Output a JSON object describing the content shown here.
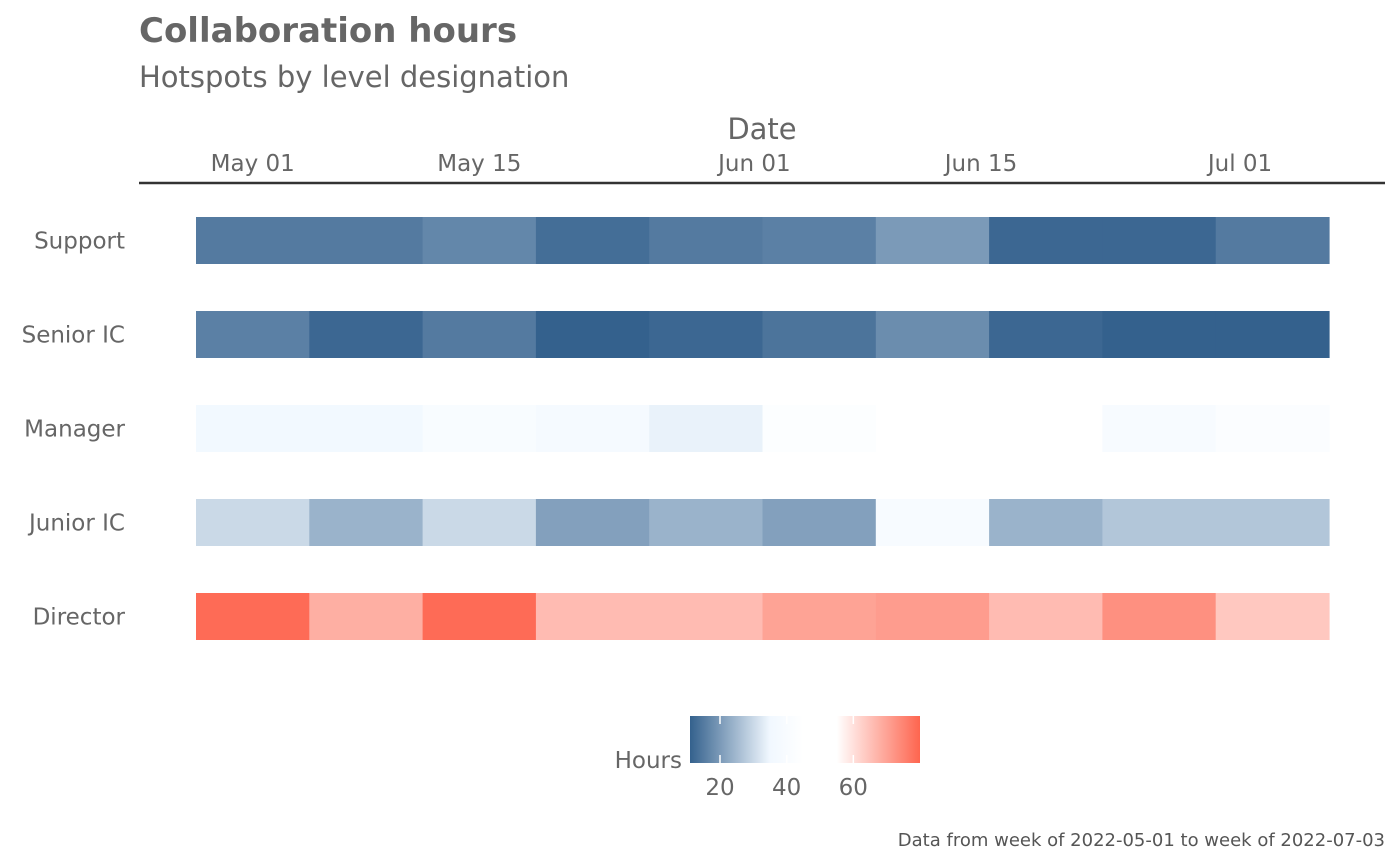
{
  "colors": {
    "low": "#34618D",
    "mid": "#F1F8FF",
    "mid_point": "#FFFFFF",
    "high": "#FE654F",
    "text": "#666666",
    "axis_line": "#333333"
  },
  "chart_data": {
    "type": "heatmap",
    "title": "Collaboration hours",
    "subtitle": "Hotspots by level designation",
    "xlabel": "Date",
    "x_axis_position": "top",
    "x_ticks": [
      "May 01",
      "May 15",
      "Jun 01",
      "Jun 15",
      "Jul 01"
    ],
    "x_tick_dates": [
      "2022-05-01",
      "2022-05-15",
      "2022-06-01",
      "2022-06-15",
      "2022-07-01"
    ],
    "weeks": [
      "2022-05-01",
      "2022-05-08",
      "2022-05-15",
      "2022-05-22",
      "2022-05-29",
      "2022-06-05",
      "2022-06-12",
      "2022-06-19",
      "2022-06-26",
      "2022-07-03"
    ],
    "rows": [
      "Support",
      "Senior IC",
      "Manager",
      "Junior IC",
      "Director"
    ],
    "values": [
      [
        15,
        15,
        17,
        13,
        15,
        16,
        20,
        12,
        12,
        15
      ],
      [
        16,
        12,
        15,
        10,
        12,
        14,
        18,
        12,
        11,
        11
      ],
      [
        36,
        36,
        40,
        38,
        34,
        43,
        45,
        45,
        39,
        42
      ],
      [
        30,
        24,
        30,
        21,
        24,
        21,
        39,
        24,
        27,
        27
      ],
      [
        79,
        68,
        79,
        66,
        66,
        70,
        71,
        66,
        73,
        64
      ]
    ],
    "legend": {
      "title": "Hours",
      "ticks": [
        20,
        40,
        60
      ],
      "range": [
        11,
        80
      ],
      "placement": "bottom"
    },
    "caption": "Data from week of 2022-05-01 to week of 2022-07-03",
    "grid": false
  }
}
